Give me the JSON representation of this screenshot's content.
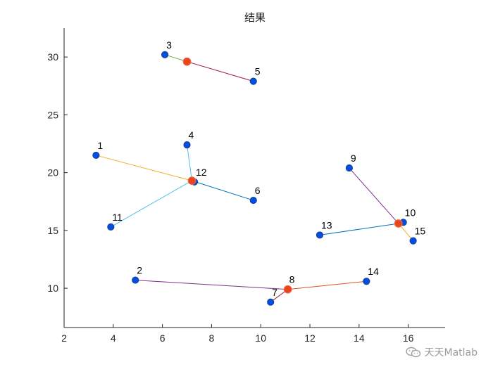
{
  "chart_data": {
    "type": "scatter",
    "title": "结果",
    "xlabel": "",
    "ylabel": "",
    "xlim": [
      2,
      17.5
    ],
    "ylim": [
      6.6,
      32.5
    ],
    "xticks": [
      2,
      4,
      6,
      8,
      10,
      12,
      14,
      16
    ],
    "yticks": [
      10,
      15,
      20,
      25,
      30
    ],
    "grid": false,
    "nodes": [
      {
        "label": "1",
        "x": 3.3,
        "y": 21.5
      },
      {
        "label": "2",
        "x": 4.9,
        "y": 10.7
      },
      {
        "label": "3",
        "x": 6.1,
        "y": 30.2
      },
      {
        "label": "4",
        "x": 7.0,
        "y": 22.4
      },
      {
        "label": "5",
        "x": 9.7,
        "y": 27.9
      },
      {
        "label": "6",
        "x": 9.7,
        "y": 17.6
      },
      {
        "label": "7",
        "x": 10.4,
        "y": 8.8
      },
      {
        "label": "8",
        "x": 11.1,
        "y": 9.9
      },
      {
        "label": "9",
        "x": 13.6,
        "y": 20.4
      },
      {
        "label": "10",
        "x": 15.8,
        "y": 15.7
      },
      {
        "label": "11",
        "x": 3.9,
        "y": 15.3
      },
      {
        "label": "12",
        "x": 7.3,
        "y": 19.2
      },
      {
        "label": "13",
        "x": 12.4,
        "y": 14.6
      },
      {
        "label": "14",
        "x": 14.3,
        "y": 10.6
      },
      {
        "label": "15",
        "x": 16.2,
        "y": 14.1
      }
    ],
    "centers": [
      {
        "x": 7.0,
        "y": 29.6
      },
      {
        "x": 7.2,
        "y": 19.3
      },
      {
        "x": 11.1,
        "y": 9.9
      },
      {
        "x": 15.6,
        "y": 15.6
      }
    ],
    "links": [
      {
        "node": "3",
        "center": 0,
        "color": "#77AC30"
      },
      {
        "node": "5",
        "center": 0,
        "color": "#A2142F"
      },
      {
        "node": "1",
        "center": 1,
        "color": "#EDB120"
      },
      {
        "node": "4",
        "center": 1,
        "color": "#4DBEEE"
      },
      {
        "node": "6",
        "center": 1,
        "color": "#0072BD"
      },
      {
        "node": "11",
        "center": 1,
        "color": "#4DBEEE"
      },
      {
        "node": "12",
        "center": 1,
        "color": "#0072BD"
      },
      {
        "node": "2",
        "center": 2,
        "color": "#7E2F8E"
      },
      {
        "node": "7",
        "center": 2,
        "color": "#A2142F"
      },
      {
        "node": "14",
        "center": 2,
        "color": "#D95319"
      },
      {
        "node": "9",
        "center": 3,
        "color": "#7E2F8E"
      },
      {
        "node": "10",
        "center": 3,
        "color": "#0072BD"
      },
      {
        "node": "13",
        "center": 3,
        "color": "#0072BD"
      },
      {
        "node": "15",
        "center": 3,
        "color": "#EDB120"
      }
    ],
    "node_color": "#0050E0",
    "node_edge_color": "#1E3C9A",
    "center_color": "#E8451E",
    "center_edge_color": "#F26A4A"
  },
  "watermark": {
    "text": "天天Matlab",
    "icon": "wechat-icon"
  }
}
